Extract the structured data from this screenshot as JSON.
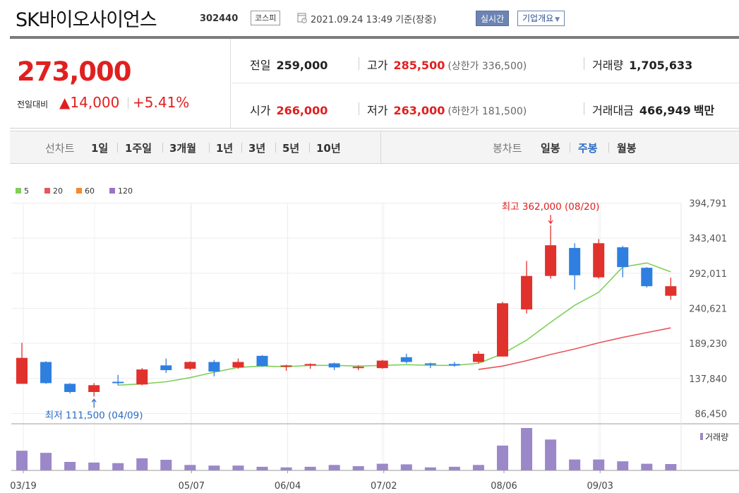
{
  "header": {
    "title": "SK바이오사이언스",
    "code": "302440",
    "market": "코스피",
    "time": "2021.09.24 13:49 기준(장중)",
    "realtime_label": "실시간",
    "company_label": "기업개요"
  },
  "price": {
    "current": "273,000",
    "compare_label": "전일대비",
    "change": "▲14,000",
    "change_pct": "+5.41%"
  },
  "stats": {
    "prev_label": "전일",
    "prev": "259,000",
    "high_label": "고가",
    "high": "285,500",
    "upper_limit": "(상한가 336,500)",
    "volume_label": "거래량",
    "volume": "1,705,633",
    "open_label": "시가",
    "open": "266,000",
    "low_label": "저가",
    "low": "263,000",
    "lower_limit": "(하한가 181,500)",
    "amount_label": "거래대금",
    "amount": "466,949",
    "amount_unit": "백만"
  },
  "tabs": {
    "line_label": "선차트",
    "line_periods": [
      "1일",
      "1주일",
      "3개월",
      "1년",
      "3년",
      "5년",
      "10년"
    ],
    "candle_label": "봉차트",
    "candle_periods": [
      "일봉",
      "주봉",
      "월봉"
    ],
    "active": "주봉"
  },
  "colors": {
    "up": "#e0312c",
    "down": "#2f7fe0",
    "ma5": "#7fcf5a",
    "ma20": "#e8555a",
    "ma60": "#f28a2a",
    "ma120": "#9b72c8",
    "volume": "#9b88c8",
    "accent_red": "#e02020",
    "accent_blue": "#2b6cc4"
  },
  "chart_data": {
    "type": "candlestick",
    "legend": [
      "5",
      "20",
      "60",
      "120"
    ],
    "y_ticks": [
      "394,791",
      "343,401",
      "292,011",
      "240,621",
      "189,230",
      "137,840",
      "86,450"
    ],
    "y_tick_values": [
      394791,
      343401,
      292011,
      240621,
      189230,
      137840,
      86450
    ],
    "ylim": [
      86450,
      394791
    ],
    "x_labels": [
      "03/19",
      "05/07",
      "06/04",
      "07/02",
      "08/06",
      "09/03"
    ],
    "x_label_index": [
      0,
      7,
      11,
      15,
      20,
      24
    ],
    "candles": [
      {
        "o": 130000,
        "h": 190000,
        "l": 130000,
        "c": 168000
      },
      {
        "o": 162000,
        "h": 163000,
        "l": 130000,
        "c": 131000
      },
      {
        "o": 130000,
        "h": 131000,
        "l": 116000,
        "c": 118000
      },
      {
        "o": 118000,
        "h": 131000,
        "l": 111500,
        "c": 128000
      },
      {
        "o": 133000,
        "h": 143000,
        "l": 128000,
        "c": 131000
      },
      {
        "o": 129000,
        "h": 153000,
        "l": 128000,
        "c": 151000
      },
      {
        "o": 157000,
        "h": 167000,
        "l": 146000,
        "c": 150000
      },
      {
        "o": 152000,
        "h": 163000,
        "l": 150000,
        "c": 162000
      },
      {
        "o": 162000,
        "h": 165000,
        "l": 141000,
        "c": 148000
      },
      {
        "o": 154000,
        "h": 167000,
        "l": 152000,
        "c": 162000
      },
      {
        "o": 171000,
        "h": 172000,
        "l": 155000,
        "c": 156000
      },
      {
        "o": 156000,
        "h": 158000,
        "l": 149000,
        "c": 157000
      },
      {
        "o": 157000,
        "h": 160000,
        "l": 152000,
        "c": 159000
      },
      {
        "o": 160000,
        "h": 161000,
        "l": 150000,
        "c": 154000
      },
      {
        "o": 153000,
        "h": 157000,
        "l": 150000,
        "c": 155000
      },
      {
        "o": 153000,
        "h": 165000,
        "l": 152000,
        "c": 164000
      },
      {
        "o": 169000,
        "h": 174000,
        "l": 160000,
        "c": 162000
      },
      {
        "o": 160000,
        "h": 161000,
        "l": 153000,
        "c": 159000
      },
      {
        "o": 159000,
        "h": 162000,
        "l": 155000,
        "c": 158000
      },
      {
        "o": 162000,
        "h": 178000,
        "l": 160000,
        "c": 174000
      },
      {
        "o": 170000,
        "h": 250000,
        "l": 170000,
        "c": 248000
      },
      {
        "o": 239000,
        "h": 310000,
        "l": 233000,
        "c": 288000
      },
      {
        "o": 288000,
        "h": 362000,
        "l": 284000,
        "c": 333000
      },
      {
        "o": 329000,
        "h": 336000,
        "l": 268000,
        "c": 289000
      },
      {
        "o": 286000,
        "h": 342000,
        "l": 284000,
        "c": 336000
      },
      {
        "o": 330000,
        "h": 332000,
        "l": 286000,
        "c": 301000
      },
      {
        "o": 300000,
        "h": 301000,
        "l": 271000,
        "c": 273000
      },
      {
        "o": 259000,
        "h": 285500,
        "l": 253000,
        "c": 273000
      }
    ],
    "ma5": [
      null,
      null,
      null,
      null,
      128000,
      130000,
      133000,
      139000,
      147000,
      154000,
      156000,
      155000,
      157000,
      157000,
      156000,
      157000,
      158000,
      157000,
      157000,
      160000,
      174000,
      194000,
      220000,
      245000,
      264000,
      301000,
      307000,
      294000
    ],
    "ma20": [
      null,
      null,
      null,
      null,
      null,
      null,
      null,
      null,
      null,
      null,
      null,
      null,
      null,
      null,
      null,
      null,
      null,
      null,
      null,
      151000,
      156000,
      164000,
      173000,
      181000,
      190000,
      198000,
      205000,
      212000
    ],
    "volume": [
      65,
      58,
      28,
      26,
      24,
      40,
      35,
      18,
      16,
      16,
      12,
      10,
      12,
      18,
      14,
      22,
      20,
      10,
      12,
      18,
      82,
      140,
      102,
      36,
      36,
      30,
      22,
      21
    ],
    "volume_label": "거래량",
    "annotations": {
      "high": "최고 362,000 (08/20)",
      "low": "최저 111,500 (04/09)"
    }
  }
}
